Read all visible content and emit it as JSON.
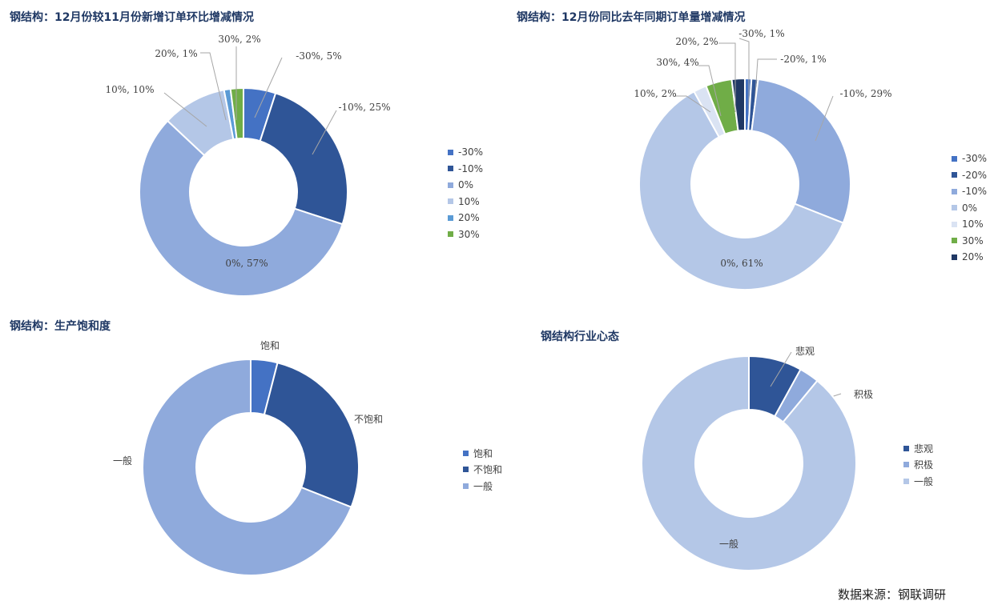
{
  "source": "数据来源：钢联调研",
  "chart_data": [
    {
      "type": "pie",
      "title": "钢结构：12月份较11月份新增订单环比增减情况",
      "series": [
        {
          "category": "-30%",
          "value": 5,
          "label": "-30%, 5%",
          "color": "#4472c4"
        },
        {
          "category": "-10%",
          "value": 25,
          "label": "-10%, 25%",
          "color": "#2f5597"
        },
        {
          "category": "0%",
          "value": 57,
          "label": "0%, 57%",
          "color": "#8faadc"
        },
        {
          "category": "10%",
          "value": 10,
          "label": "10%, 10%",
          "color": "#b4c7e7"
        },
        {
          "category": "20%",
          "value": 1,
          "label": "20%, 1%",
          "color": "#5b9bd5"
        },
        {
          "category": "30%",
          "value": 2,
          "label": "30%, 2%",
          "color": "#70ad47"
        }
      ],
      "legend": [
        "-30%",
        "-10%",
        "0%",
        "10%",
        "20%",
        "30%"
      ]
    },
    {
      "type": "pie",
      "title": "钢结构：12月份同比去年同期订单量增减情况",
      "series": [
        {
          "category": "-30%",
          "value": 1,
          "label": "-30%, 1%",
          "color": "#4472c4"
        },
        {
          "category": "-20%",
          "value": 1,
          "label": "-20%, 1%",
          "color": "#2f5597"
        },
        {
          "category": "-10%",
          "value": 29,
          "label": "-10%, 29%",
          "color": "#8faadc"
        },
        {
          "category": "0%",
          "value": 61,
          "label": "0%, 61%",
          "color": "#b4c7e7"
        },
        {
          "category": "10%",
          "value": 2,
          "label": "10%, 2%",
          "color": "#dae3f3"
        },
        {
          "category": "30%",
          "value": 4,
          "label": "30%, 4%",
          "color": "#70ad47"
        },
        {
          "category": "20%",
          "value": 2,
          "label": "20%, 2%",
          "color": "#203864"
        }
      ],
      "legend": [
        "-30%",
        "-20%",
        "-10%",
        "0%",
        "10%",
        "30%",
        "20%"
      ]
    },
    {
      "type": "pie",
      "title": "钢结构：生产饱和度",
      "series": [
        {
          "category": "饱和",
          "value": 4,
          "label": "饱和",
          "color": "#4472c4"
        },
        {
          "category": "不饱和",
          "value": 27,
          "label": "不饱和",
          "color": "#2f5597"
        },
        {
          "category": "一般",
          "value": 69,
          "label": "一般",
          "color": "#8faadc"
        }
      ],
      "legend": [
        "饱和",
        "不饱和",
        "一般"
      ]
    },
    {
      "type": "pie",
      "title": "钢结构行业心态",
      "series": [
        {
          "category": "悲观",
          "value": 8,
          "label": "悲观",
          "color": "#2f5597"
        },
        {
          "category": "积极",
          "value": 3,
          "label": "积极",
          "color": "#8faadc"
        },
        {
          "category": "一般",
          "value": 89,
          "label": "一般",
          "color": "#b4c7e7"
        }
      ],
      "legend": [
        "悲观",
        "积极",
        "一般"
      ]
    }
  ]
}
